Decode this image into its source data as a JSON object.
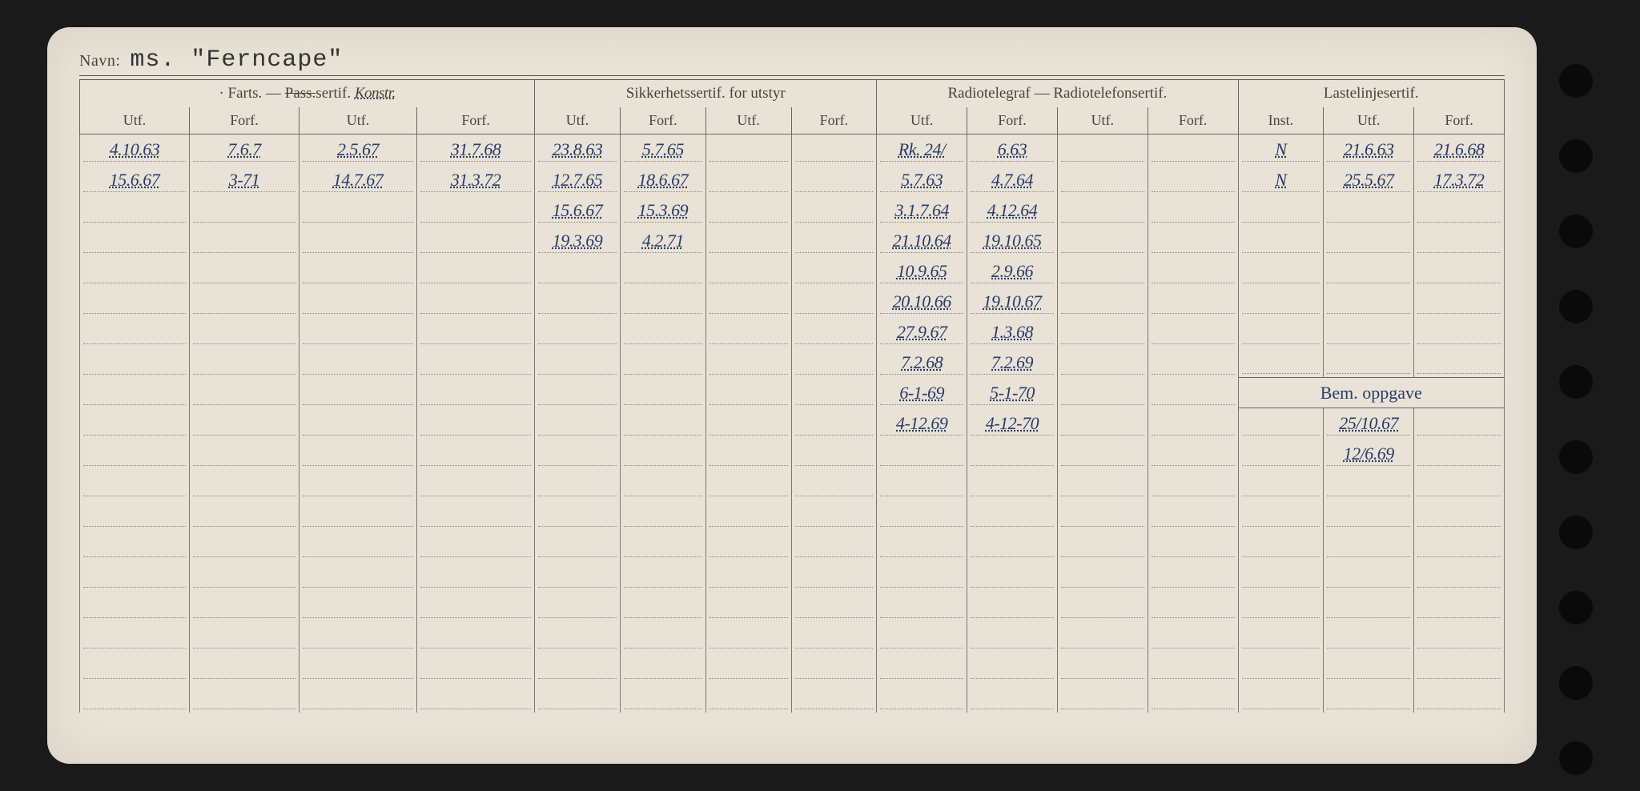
{
  "colors": {
    "paper": "#e8e3d6",
    "ink_print": "#444444",
    "ink_hand": "#2a3a6a",
    "border": "#666666",
    "dotted": "#888888",
    "bg": "#1a1a1a"
  },
  "font": {
    "print": "Georgia",
    "hand": "Comic Sans MS",
    "type": "Courier New"
  },
  "navn": {
    "label": "Navn:",
    "value": "ms. \"Ferncape\""
  },
  "groups": {
    "farts": "· Farts. —",
    "pass_struck": "Pass.",
    "pass_suffix": "sertif.",
    "pass_hand": "Konstr.",
    "sikk": "Sikkerhetssertif. for utstyr",
    "radio": "Radiotelegraf — Radiotelefonsertif.",
    "last": "Lastelinjesertif."
  },
  "sub": {
    "utf": "Utf.",
    "forf": "Forf.",
    "inst": "Inst."
  },
  "bem": {
    "header": "Bem. oppgave"
  },
  "rows": [
    {
      "farts_utf": "4.10.63",
      "farts_forf": "7.6.7",
      "pass_utf": "2.5.67",
      "pass_forf": "31.7.68",
      "sikk_utf": "23.8.63",
      "sikk_forf": "5.7.65",
      "sikk_utf2": "",
      "sikk_forf2": "",
      "radio_utf": "Rk. 24/",
      "radio_forf": "6.63",
      "radio_utf2": "",
      "radio_forf2": "",
      "last_inst": "N",
      "last_utf": "21.6.63",
      "last_forf": "21.6.68"
    },
    {
      "farts_utf": "15.6.67",
      "farts_forf": "3-71",
      "pass_utf": "14.7.67",
      "pass_forf": "31.3.72",
      "sikk_utf": "12.7.65",
      "sikk_forf": "18.6.67",
      "sikk_utf2": "",
      "sikk_forf2": "",
      "radio_utf": "5.7.63",
      "radio_forf": "4.7.64",
      "radio_utf2": "",
      "radio_forf2": "",
      "last_inst": "N",
      "last_utf": "25.5.67",
      "last_forf": "17.3.72"
    },
    {
      "sikk_utf": "15.6.67",
      "sikk_forf": "15.3.69",
      "radio_utf": "3.1.7.64",
      "radio_forf": "4.12.64"
    },
    {
      "sikk_utf": "19.3.69",
      "sikk_forf": "4.2.71",
      "radio_utf": "21.10.64",
      "radio_forf": "19.10.65"
    },
    {
      "radio_utf": "10.9.65",
      "radio_forf": "2.9.66"
    },
    {
      "radio_utf": "20.10.66",
      "radio_forf": "19.10.67"
    },
    {
      "radio_utf": "27.9.67",
      "radio_forf": "1.3.68"
    },
    {
      "radio_utf": "7.2.68",
      "radio_forf": "7.2.69"
    },
    {
      "radio_utf": "6-1-69",
      "radio_forf": "5-1-70"
    },
    {
      "radio_utf": "4-12.69",
      "radio_forf": "4-12-70"
    }
  ],
  "bem_rows": [
    "25/10.67",
    "12/6.69",
    "",
    "",
    "",
    ""
  ],
  "blank_rows_after": 8,
  "num_holes": 10
}
